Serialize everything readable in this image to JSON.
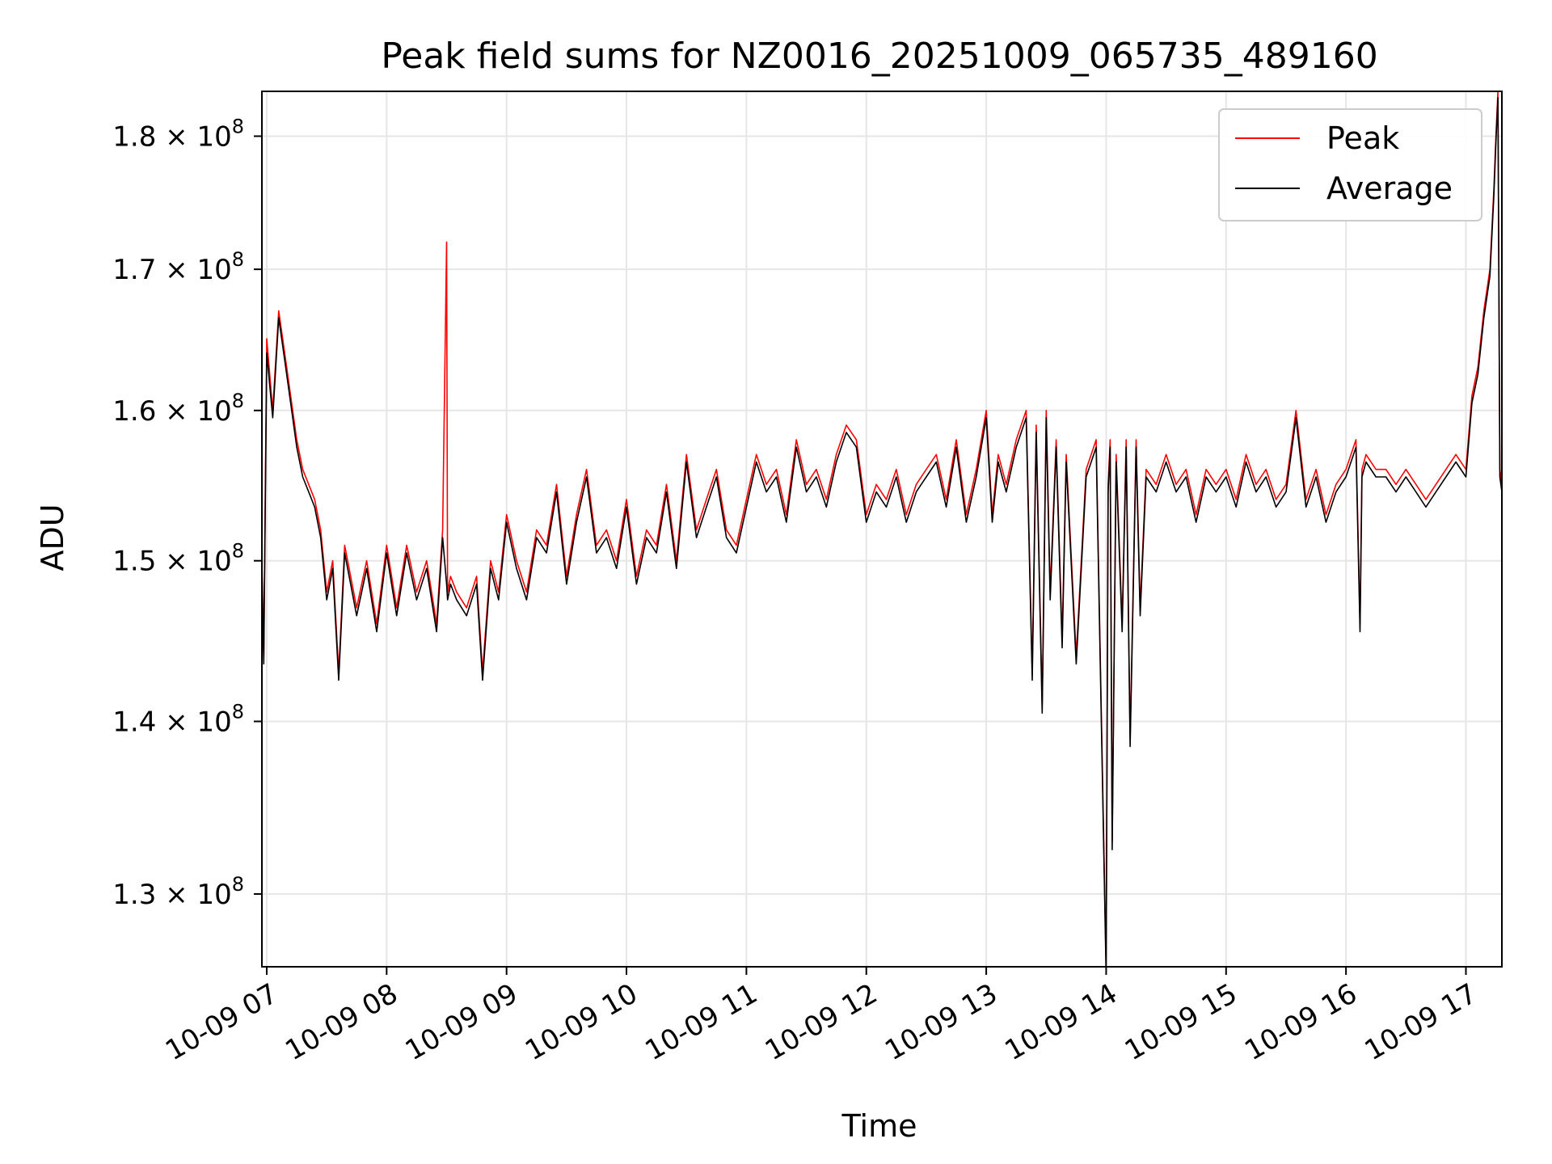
{
  "chart_data": {
    "type": "line",
    "title": "Peak field sums for NZ0016_20251009_065735_489160",
    "xlabel": "Time",
    "ylabel": "ADU",
    "y_scale": "log",
    "grid": true,
    "legend_position": "upper right",
    "xlim": [
      "2025-10-09 06:57:35",
      "2025-10-09 17:18:00"
    ],
    "ylim": [
      126000000.0,
      183500000.0
    ],
    "x_ticks": [
      "10-09 07",
      "10-09 08",
      "10-09 09",
      "10-09 10",
      "10-09 11",
      "10-09 12",
      "10-09 13",
      "10-09 14",
      "10-09 15",
      "10-09 16",
      "10-09 17"
    ],
    "y_ticks": [
      {
        "mantissa": "1.3",
        "exp": "8",
        "value": 130000000.0
      },
      {
        "mantissa": "1.4",
        "exp": "8",
        "value": 140000000.0
      },
      {
        "mantissa": "1.5",
        "exp": "8",
        "value": 150000000.0
      },
      {
        "mantissa": "1.6",
        "exp": "8",
        "value": 160000000.0
      },
      {
        "mantissa": "1.7",
        "exp": "8",
        "value": 170000000.0
      },
      {
        "mantissa": "1.8",
        "exp": "8",
        "value": 180000000.0
      }
    ],
    "series": [
      {
        "name": "Peak",
        "color": "#ff0000",
        "x": [
          "06:57:35",
          "06:58:30",
          "07:00",
          "07:03",
          "07:06",
          "07:09",
          "07:12",
          "07:15",
          "07:18",
          "07:21",
          "07:24",
          "07:27",
          "07:30",
          "07:33",
          "07:36",
          "07:39",
          "07:42",
          "07:45",
          "07:50",
          "07:55",
          "08:00",
          "08:05",
          "08:10",
          "08:15",
          "08:20",
          "08:25",
          "08:28",
          "08:30",
          "08:30:30",
          "08:32",
          "08:35",
          "08:40",
          "08:45",
          "08:48",
          "08:52",
          "08:56",
          "09:00",
          "09:05",
          "09:10",
          "09:15",
          "09:20",
          "09:25",
          "09:30",
          "09:35",
          "09:40",
          "09:45",
          "09:50",
          "09:55",
          "10:00",
          "10:05",
          "10:10",
          "10:15",
          "10:20",
          "10:25",
          "10:30",
          "10:35",
          "10:40",
          "10:45",
          "10:50",
          "10:55",
          "11:00",
          "11:05",
          "11:10",
          "11:15",
          "11:20",
          "11:25",
          "11:30",
          "11:35",
          "11:40",
          "11:45",
          "11:50",
          "11:55",
          "12:00",
          "12:05",
          "12:10",
          "12:15",
          "12:20",
          "12:25",
          "12:30",
          "12:35",
          "12:40",
          "12:45",
          "12:50",
          "12:55",
          "13:00",
          "13:03",
          "13:06",
          "13:10",
          "13:15",
          "13:20",
          "13:23",
          "13:25",
          "13:28",
          "13:30",
          "13:32",
          "13:35",
          "13:38",
          "13:40",
          "13:45",
          "13:50",
          "13:55",
          "14:00",
          "14:01",
          "14:02",
          "14:03",
          "14:05",
          "14:08",
          "14:10",
          "14:12",
          "14:15",
          "14:17",
          "14:20",
          "14:25",
          "14:30",
          "14:35",
          "14:40",
          "14:45",
          "14:50",
          "14:55",
          "15:00",
          "15:05",
          "15:10",
          "15:15",
          "15:20",
          "15:25",
          "15:30",
          "15:35",
          "15:40",
          "15:45",
          "15:50",
          "15:55",
          "16:00",
          "16:05",
          "16:07",
          "16:08",
          "16:10",
          "16:15",
          "16:20",
          "16:25",
          "16:30",
          "16:35",
          "16:40",
          "16:45",
          "16:50",
          "16:55",
          "17:00",
          "17:03",
          "17:06",
          "17:09",
          "17:12",
          "17:14",
          "17:15",
          "17:16",
          "17:17",
          "17:18"
        ],
        "values": [
          150000000.0,
          144000000.0,
          165000000.0,
          160000000.0,
          167000000.0,
          164000000.0,
          161000000.0,
          158000000.0,
          156000000.0,
          155000000.0,
          154000000.0,
          152000000.0,
          148000000.0,
          150000000.0,
          143000000.0,
          151000000.0,
          149000000.0,
          147000000.0,
          150000000.0,
          146000000.0,
          151000000.0,
          147000000.0,
          151000000.0,
          148000000.0,
          150000000.0,
          146000000.0,
          152000000.0,
          172000000.0,
          148000000.0,
          149000000.0,
          148000000.0,
          147000000.0,
          149000000.0,
          143000000.0,
          150000000.0,
          148000000.0,
          153000000.0,
          150000000.0,
          148000000.0,
          152000000.0,
          151000000.0,
          155000000.0,
          149000000.0,
          153000000.0,
          156000000.0,
          151000000.0,
          152000000.0,
          150000000.0,
          154000000.0,
          149000000.0,
          152000000.0,
          151000000.0,
          155000000.0,
          150000000.0,
          157000000.0,
          152000000.0,
          154000000.0,
          156000000.0,
          152000000.0,
          151000000.0,
          154000000.0,
          157000000.0,
          155000000.0,
          156000000.0,
          153000000.0,
          158000000.0,
          155000000.0,
          156000000.0,
          154000000.0,
          157000000.0,
          159000000.0,
          158000000.0,
          153000000.0,
          155000000.0,
          154000000.0,
          156000000.0,
          153000000.0,
          155000000.0,
          156000000.0,
          157000000.0,
          154000000.0,
          158000000.0,
          153000000.0,
          156000000.0,
          160000000.0,
          153000000.0,
          157000000.0,
          155000000.0,
          158000000.0,
          160000000.0,
          143000000.0,
          159000000.0,
          141000000.0,
          160000000.0,
          148000000.0,
          158000000.0,
          145000000.0,
          157000000.0,
          144000000.0,
          156000000.0,
          158000000.0,
          126000000.0,
          155000000.0,
          158000000.0,
          133000000.0,
          157000000.0,
          146000000.0,
          158000000.0,
          139000000.0,
          158000000.0,
          147000000.0,
          156000000.0,
          155000000.0,
          157000000.0,
          155000000.0,
          156000000.0,
          153000000.0,
          156000000.0,
          155000000.0,
          156000000.0,
          154000000.0,
          157000000.0,
          155000000.0,
          156000000.0,
          154000000.0,
          155000000.0,
          160000000.0,
          154000000.0,
          156000000.0,
          153000000.0,
          155000000.0,
          156000000.0,
          158000000.0,
          146000000.0,
          156000000.0,
          157000000.0,
          156000000.0,
          156000000.0,
          155000000.0,
          156000000.0,
          155000000.0,
          154000000.0,
          155000000.0,
          156000000.0,
          157000000.0,
          156000000.0,
          161000000.0,
          163000000.0,
          167000000.0,
          170000000.0,
          176000000.0,
          180000000.0,
          183500000.0,
          156000000.0,
          155000000.0
        ]
      },
      {
        "name": "Average",
        "color": "#000000",
        "x": [
          "06:57:35",
          "06:58:30",
          "07:00",
          "07:03",
          "07:06",
          "07:09",
          "07:12",
          "07:15",
          "07:18",
          "07:21",
          "07:24",
          "07:27",
          "07:30",
          "07:33",
          "07:36",
          "07:39",
          "07:42",
          "07:45",
          "07:50",
          "07:55",
          "08:00",
          "08:05",
          "08:10",
          "08:15",
          "08:20",
          "08:25",
          "08:28",
          "08:30",
          "08:30:30",
          "08:32",
          "08:35",
          "08:40",
          "08:45",
          "08:48",
          "08:52",
          "08:56",
          "09:00",
          "09:05",
          "09:10",
          "09:15",
          "09:20",
          "09:25",
          "09:30",
          "09:35",
          "09:40",
          "09:45",
          "09:50",
          "09:55",
          "10:00",
          "10:05",
          "10:10",
          "10:15",
          "10:20",
          "10:25",
          "10:30",
          "10:35",
          "10:40",
          "10:45",
          "10:50",
          "10:55",
          "11:00",
          "11:05",
          "11:10",
          "11:15",
          "11:20",
          "11:25",
          "11:30",
          "11:35",
          "11:40",
          "11:45",
          "11:50",
          "11:55",
          "12:00",
          "12:05",
          "12:10",
          "12:15",
          "12:20",
          "12:25",
          "12:30",
          "12:35",
          "12:40",
          "12:45",
          "12:50",
          "12:55",
          "13:00",
          "13:03",
          "13:06",
          "13:10",
          "13:15",
          "13:20",
          "13:23",
          "13:25",
          "13:28",
          "13:30",
          "13:32",
          "13:35",
          "13:38",
          "13:40",
          "13:45",
          "13:50",
          "13:55",
          "14:00",
          "14:01",
          "14:02",
          "14:03",
          "14:05",
          "14:08",
          "14:10",
          "14:12",
          "14:15",
          "14:17",
          "14:20",
          "14:25",
          "14:30",
          "14:35",
          "14:40",
          "14:45",
          "14:50",
          "14:55",
          "15:00",
          "15:05",
          "15:10",
          "15:15",
          "15:20",
          "15:25",
          "15:30",
          "15:35",
          "15:40",
          "15:45",
          "15:50",
          "15:55",
          "16:00",
          "16:05",
          "16:07",
          "16:08",
          "16:10",
          "16:15",
          "16:20",
          "16:25",
          "16:30",
          "16:35",
          "16:40",
          "16:45",
          "16:50",
          "16:55",
          "17:00",
          "17:03",
          "17:06",
          "17:09",
          "17:12",
          "17:14",
          "17:15",
          "17:16",
          "17:17",
          "17:18"
        ],
        "values": [
          149500000.0,
          143500000.0,
          164000000.0,
          159500000.0,
          166500000.0,
          163500000.0,
          160500000.0,
          157500000.0,
          155500000.0,
          154500000.0,
          153500000.0,
          151500000.0,
          147500000.0,
          149500000.0,
          142500000.0,
          150500000.0,
          148500000.0,
          146500000.0,
          149500000.0,
          145500000.0,
          150500000.0,
          146500000.0,
          150500000.0,
          147500000.0,
          149500000.0,
          145500000.0,
          151500000.0,
          148500000.0,
          147500000.0,
          148500000.0,
          147500000.0,
          146500000.0,
          148500000.0,
          142500000.0,
          149500000.0,
          147500000.0,
          152500000.0,
          149500000.0,
          147500000.0,
          151500000.0,
          150500000.0,
          154500000.0,
          148500000.0,
          152500000.0,
          155500000.0,
          150500000.0,
          151500000.0,
          149500000.0,
          153500000.0,
          148500000.0,
          151500000.0,
          150500000.0,
          154500000.0,
          149500000.0,
          156500000.0,
          151500000.0,
          153500000.0,
          155500000.0,
          151500000.0,
          150500000.0,
          153500000.0,
          156500000.0,
          154500000.0,
          155500000.0,
          152500000.0,
          157500000.0,
          154500000.0,
          155500000.0,
          153500000.0,
          156500000.0,
          158500000.0,
          157500000.0,
          152500000.0,
          154500000.0,
          153500000.0,
          155500000.0,
          152500000.0,
          154500000.0,
          155500000.0,
          156500000.0,
          153500000.0,
          157500000.0,
          152500000.0,
          155500000.0,
          159500000.0,
          152500000.0,
          156500000.0,
          154500000.0,
          157500000.0,
          159500000.0,
          142500000.0,
          158500000.0,
          140500000.0,
          159500000.0,
          147500000.0,
          157500000.0,
          144500000.0,
          156500000.0,
          143500000.0,
          155500000.0,
          157500000.0,
          125500000.0,
          154500000.0,
          157500000.0,
          132500000.0,
          156500000.0,
          145500000.0,
          157500000.0,
          138500000.0,
          157500000.0,
          146500000.0,
          155500000.0,
          154500000.0,
          156500000.0,
          154500000.0,
          155500000.0,
          152500000.0,
          155500000.0,
          154500000.0,
          155500000.0,
          153500000.0,
          156500000.0,
          154500000.0,
          155500000.0,
          153500000.0,
          154500000.0,
          159500000.0,
          153500000.0,
          155500000.0,
          152500000.0,
          154500000.0,
          155500000.0,
          157500000.0,
          145500000.0,
          155500000.0,
          156500000.0,
          155500000.0,
          155500000.0,
          154500000.0,
          155500000.0,
          154500000.0,
          153500000.0,
          154500000.0,
          155500000.0,
          156500000.0,
          155500000.0,
          160500000.0,
          162500000.0,
          166500000.0,
          169500000.0,
          175500000.0,
          179500000.0,
          183000000.0,
          155500000.0,
          154500000.0
        ]
      }
    ]
  }
}
